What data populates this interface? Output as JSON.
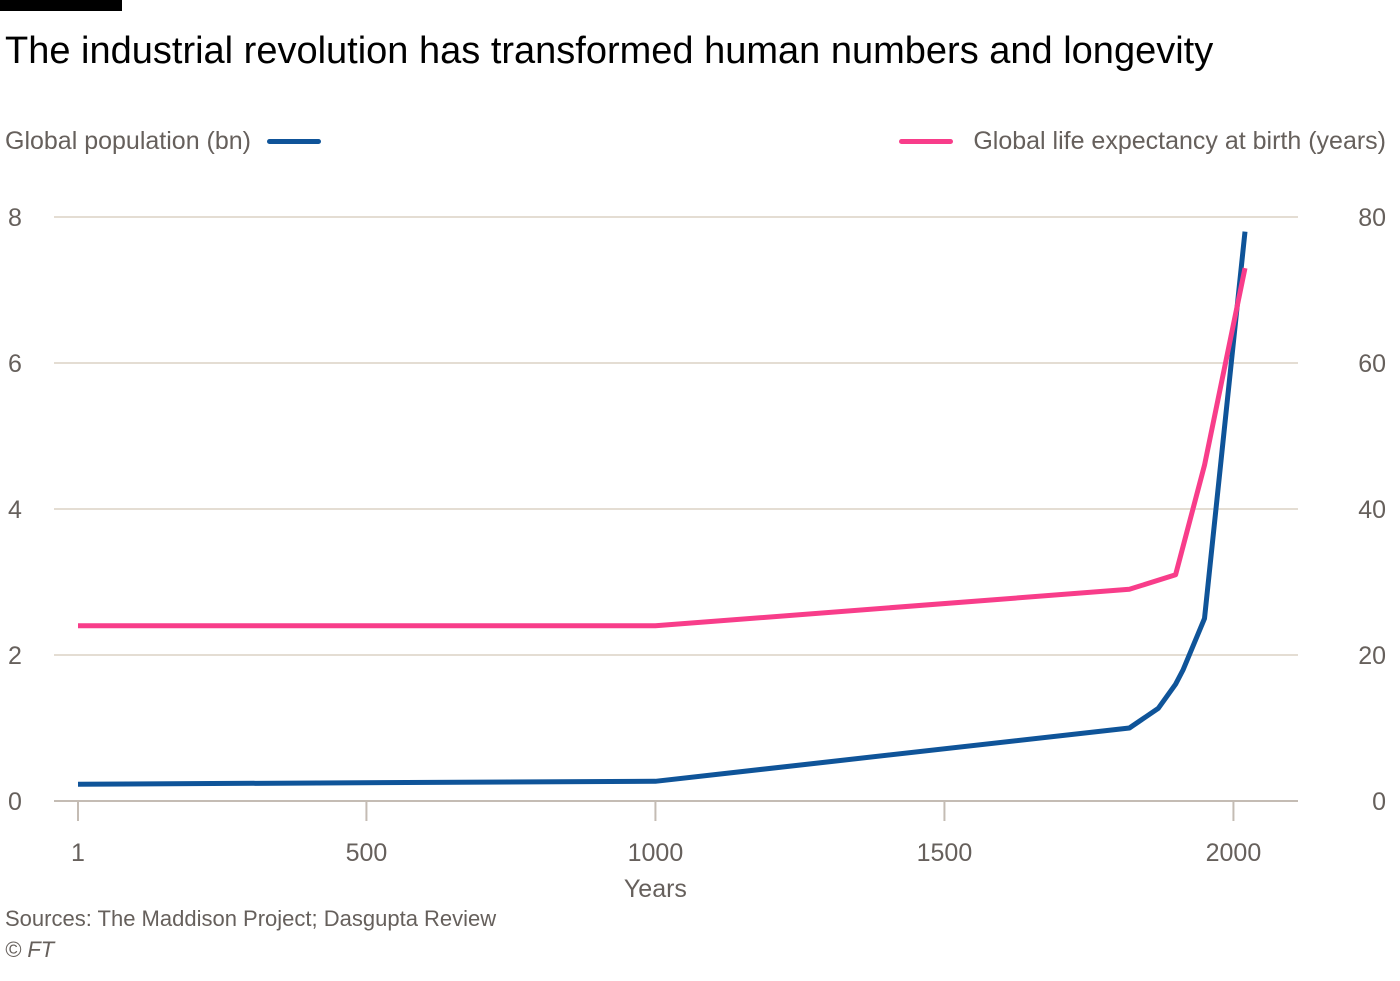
{
  "title": "The industrial revolution has transformed human numbers and longevity",
  "legend": {
    "population_label": "Global population (bn)",
    "life_label": "Global life expectancy at birth (years)"
  },
  "colors": {
    "population": "#0f5499",
    "life": "#f83d8a",
    "grid": "#e4ddd3",
    "axis": "#c4bcb4",
    "tick_text": "#66605c"
  },
  "footer": {
    "sources": "Sources: The Maddison Project; Dasgupta Review",
    "copyright": "© FT"
  },
  "chart_data": {
    "type": "line",
    "title": "The industrial revolution has transformed human numbers and longevity",
    "xlabel": "Years",
    "x_ticks": [
      1,
      500,
      1000,
      1500,
      2000
    ],
    "xlim": [
      1,
      2020
    ],
    "y_left": {
      "label": "Global population (bn)",
      "lim": [
        0,
        8
      ],
      "ticks": [
        0,
        2,
        4,
        6,
        8
      ]
    },
    "y_right": {
      "label": "Global life expectancy at birth (years)",
      "lim": [
        0,
        80
      ],
      "ticks": [
        0,
        20,
        40,
        60,
        80
      ]
    },
    "grid": true,
    "series": [
      {
        "name": "Global population (bn)",
        "axis": "left",
        "x": [
          1,
          1000,
          1820,
          1870,
          1900,
          1913,
          1950,
          2020
        ],
        "y": [
          0.23,
          0.27,
          1.0,
          1.27,
          1.6,
          1.8,
          2.5,
          7.8
        ]
      },
      {
        "name": "Global life expectancy at birth (years)",
        "axis": "right",
        "x": [
          1,
          1000,
          1820,
          1900,
          1950,
          2020
        ],
        "y": [
          24,
          24,
          29,
          31,
          46,
          73
        ]
      }
    ]
  }
}
